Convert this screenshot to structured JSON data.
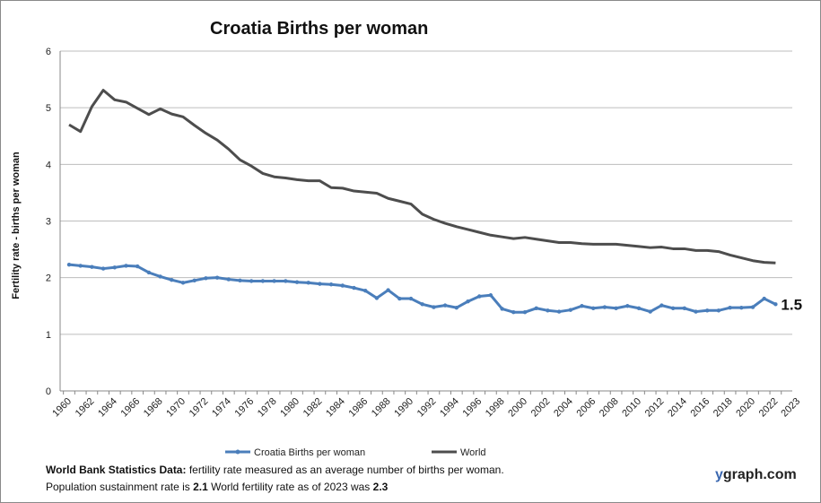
{
  "chart_data": {
    "type": "line",
    "title": "Croatia Births per woman",
    "xlabel": "",
    "ylabel": "Fertility rate  - births per woman",
    "ylim": [
      0,
      6
    ],
    "yticks": [
      "0",
      "1",
      "2",
      "3",
      "4",
      "5",
      "6"
    ],
    "xticks": [
      "1960",
      "1962",
      "1964",
      "1966",
      "1968",
      "1970",
      "1972",
      "1974",
      "1976",
      "1978",
      "1980",
      "1982",
      "1984",
      "1986",
      "1988",
      "1990",
      "1992",
      "1994",
      "1996",
      "1998",
      "2000",
      "2002",
      "2004",
      "2006",
      "2008",
      "2010",
      "2012",
      "2014",
      "2016",
      "2018",
      "2020",
      "2022",
      "2023"
    ],
    "grid": "horizontal",
    "legend": "bottom",
    "x": [
      1960,
      1961,
      1962,
      1963,
      1964,
      1965,
      1966,
      1967,
      1968,
      1969,
      1970,
      1971,
      1972,
      1973,
      1974,
      1975,
      1976,
      1977,
      1978,
      1979,
      1980,
      1981,
      1982,
      1983,
      1984,
      1985,
      1986,
      1987,
      1988,
      1989,
      1990,
      1991,
      1992,
      1993,
      1994,
      1995,
      1996,
      1997,
      1998,
      1999,
      2000,
      2001,
      2002,
      2003,
      2004,
      2005,
      2006,
      2007,
      2008,
      2009,
      2010,
      2011,
      2012,
      2013,
      2014,
      2015,
      2016,
      2017,
      2018,
      2019,
      2020,
      2021,
      2022
    ],
    "series": [
      {
        "name": "Croatia Births per woman",
        "color": "#4a7ebb",
        "values": [
          2.23,
          2.21,
          2.19,
          2.16,
          2.18,
          2.21,
          2.2,
          2.09,
          2.02,
          1.96,
          1.91,
          1.95,
          1.99,
          2.0,
          1.97,
          1.95,
          1.94,
          1.94,
          1.94,
          1.94,
          1.92,
          1.91,
          1.89,
          1.88,
          1.86,
          1.82,
          1.77,
          1.64,
          1.78,
          1.63,
          1.63,
          1.53,
          1.48,
          1.51,
          1.47,
          1.58,
          1.67,
          1.69,
          1.45,
          1.39,
          1.39,
          1.46,
          1.42,
          1.4,
          1.43,
          1.5,
          1.46,
          1.48,
          1.46,
          1.5,
          1.46,
          1.4,
          1.51,
          1.46,
          1.46,
          1.4,
          1.42,
          1.42,
          1.47,
          1.47,
          1.48,
          1.63,
          1.53
        ]
      },
      {
        "name": "World",
        "color": "#4d4d4d",
        "values": [
          4.7,
          4.58,
          5.02,
          5.31,
          5.14,
          5.1,
          4.99,
          4.88,
          4.98,
          4.89,
          4.84,
          4.69,
          4.55,
          4.43,
          4.27,
          4.08,
          3.97,
          3.84,
          3.78,
          3.76,
          3.73,
          3.71,
          3.71,
          3.59,
          3.58,
          3.53,
          3.51,
          3.49,
          3.4,
          3.35,
          3.3,
          3.12,
          3.03,
          2.96,
          2.9,
          2.85,
          2.8,
          2.75,
          2.72,
          2.69,
          2.71,
          2.68,
          2.65,
          2.62,
          2.62,
          2.6,
          2.59,
          2.59,
          2.59,
          2.57,
          2.55,
          2.53,
          2.54,
          2.51,
          2.51,
          2.48,
          2.48,
          2.46,
          2.4,
          2.35,
          2.3,
          2.27,
          2.26
        ]
      }
    ],
    "annotations": [
      "1.5"
    ]
  },
  "footer": {
    "source_bold": "World Bank Statistics Data:",
    "source_text": " fertility rate measured as an average number  of births per woman.",
    "line2_a": "Population sustainment rate is ",
    "line2_b": "2.1",
    "line2_c": "   World fertility rate as of 2023 was ",
    "line2_d": "2.3"
  },
  "brand": {
    "y": "y",
    "rest": "graph.com"
  }
}
